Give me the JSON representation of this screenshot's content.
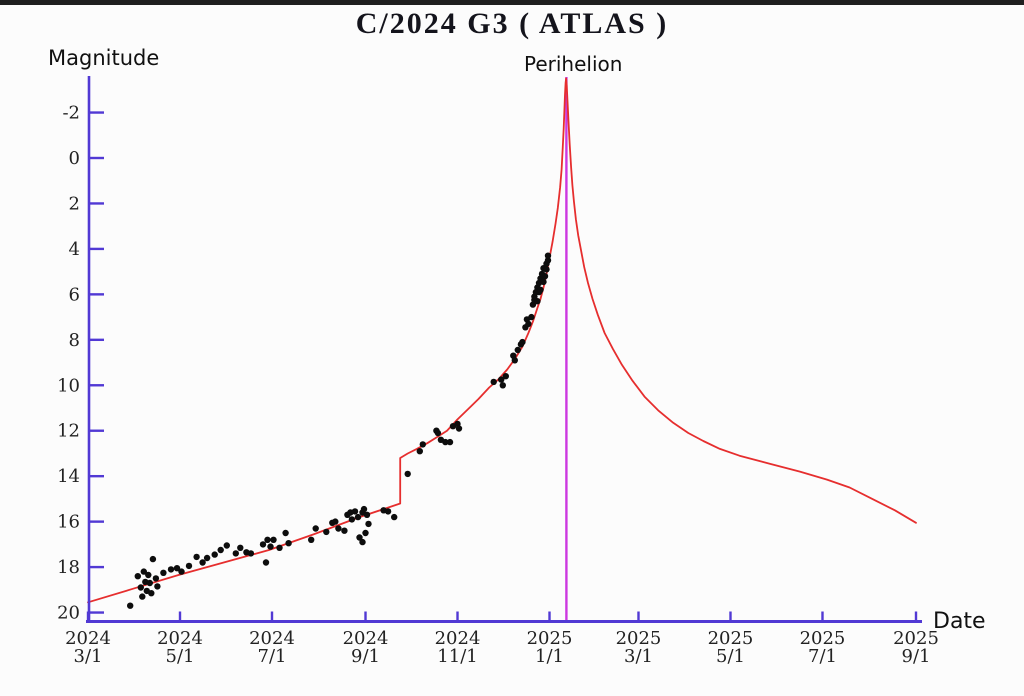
{
  "page": {
    "background": "#fcfcfc",
    "top_bar_color": "#1f1f1f"
  },
  "chart_data": {
    "type": "scatter",
    "title": "C/2024 G3 ( ATLAS )",
    "xlabel": "Date",
    "ylabel": "Magnitude",
    "legend": "none",
    "grid": false,
    "axis_color": "#5139d4",
    "tick_label_color": "#222222",
    "y_axis": {
      "inverted": true,
      "range": [
        -3.7,
        20.4
      ],
      "ticks": [
        -2,
        0,
        2,
        4,
        6,
        8,
        10,
        12,
        14,
        16,
        18,
        20
      ]
    },
    "x_axis": {
      "range_days": [
        0,
        549
      ],
      "tick_days": [
        0,
        61,
        122,
        184,
        245,
        306,
        365,
        426,
        487,
        549
      ],
      "tick_labels": [
        [
          "2024",
          "3/1"
        ],
        [
          "2024",
          "5/1"
        ],
        [
          "2024",
          "7/1"
        ],
        [
          "2024",
          "9/1"
        ],
        [
          "2024",
          "11/1"
        ],
        [
          "2025",
          "1/1"
        ],
        [
          "2025",
          "3/1"
        ],
        [
          "2025",
          "5/1"
        ],
        [
          "2025",
          "7/1"
        ],
        [
          "2025",
          "9/1"
        ]
      ]
    },
    "annotations": {
      "perihelion": {
        "label": "Perihelion",
        "day": 317.2,
        "line_color": "#cc38e0"
      }
    },
    "series": [
      {
        "name": "model-light-curve",
        "type": "line",
        "color": "#e62e2e",
        "points": [
          [
            0,
            19.55
          ],
          [
            30,
            18.95
          ],
          [
            60,
            18.35
          ],
          [
            90,
            17.8
          ],
          [
            120,
            17.25
          ],
          [
            150,
            16.55
          ],
          [
            180,
            15.8
          ],
          [
            196,
            15.45
          ],
          [
            207,
            15.2
          ],
          [
            207,
            13.2
          ],
          [
            212,
            13.0
          ],
          [
            218,
            12.8
          ],
          [
            225,
            12.55
          ],
          [
            231,
            12.3
          ],
          [
            238,
            12.0
          ],
          [
            245,
            11.5
          ],
          [
            252,
            11.05
          ],
          [
            259,
            10.6
          ],
          [
            266,
            10.1
          ],
          [
            272,
            9.75
          ],
          [
            278,
            9.3
          ],
          [
            283,
            8.85
          ],
          [
            288,
            8.3
          ],
          [
            292,
            7.7
          ],
          [
            295,
            7.2
          ],
          [
            298,
            6.6
          ],
          [
            300,
            6.2
          ],
          [
            302,
            5.7
          ],
          [
            304,
            5.1
          ],
          [
            306,
            4.4
          ],
          [
            308,
            3.7
          ],
          [
            310,
            2.9
          ],
          [
            311.5,
            2.2
          ],
          [
            313,
            1.3
          ],
          [
            314,
            0.5
          ],
          [
            314.8,
            -0.5
          ],
          [
            315.4,
            -1.3
          ],
          [
            315.9,
            -2.1
          ],
          [
            316.3,
            -2.8
          ],
          [
            316.7,
            -3.3
          ],
          [
            317,
            -3.5
          ],
          [
            317.4,
            -3.2
          ],
          [
            317.9,
            -2.5
          ],
          [
            318.6,
            -1.6
          ],
          [
            319.4,
            -0.6
          ],
          [
            320.3,
            0.4
          ],
          [
            321.2,
            1.2
          ],
          [
            322.2,
            1.9
          ],
          [
            323.5,
            2.7
          ],
          [
            325,
            3.4
          ],
          [
            327,
            4.1
          ],
          [
            329,
            4.8
          ],
          [
            331.5,
            5.5
          ],
          [
            334.5,
            6.2
          ],
          [
            338,
            6.9
          ],
          [
            342.5,
            7.7
          ],
          [
            348,
            8.4
          ],
          [
            354,
            9.1
          ],
          [
            361,
            9.8
          ],
          [
            369,
            10.5
          ],
          [
            378,
            11.1
          ],
          [
            388,
            11.65
          ],
          [
            398,
            12.1
          ],
          [
            408,
            12.45
          ],
          [
            419,
            12.8
          ],
          [
            432,
            13.1
          ],
          [
            452,
            13.45
          ],
          [
            472,
            13.8
          ],
          [
            490,
            14.15
          ],
          [
            505,
            14.5
          ],
          [
            520,
            15.0
          ],
          [
            535,
            15.5
          ],
          [
            549,
            16.05
          ]
        ]
      },
      {
        "name": "observations",
        "type": "scatter",
        "color": "#0d0d0d",
        "points": [
          [
            28,
            19.7
          ],
          [
            33,
            18.4
          ],
          [
            35,
            18.9
          ],
          [
            36,
            19.3
          ],
          [
            37,
            18.2
          ],
          [
            38,
            18.65
          ],
          [
            39,
            19.05
          ],
          [
            40,
            18.35
          ],
          [
            41,
            18.7
          ],
          [
            42,
            19.15
          ],
          [
            43,
            17.65
          ],
          [
            45,
            18.5
          ],
          [
            46,
            18.85
          ],
          [
            50,
            18.25
          ],
          [
            55,
            18.1
          ],
          [
            59,
            18.05
          ],
          [
            62,
            18.2
          ],
          [
            67,
            17.95
          ],
          [
            72,
            17.55
          ],
          [
            76,
            17.8
          ],
          [
            79,
            17.6
          ],
          [
            84,
            17.45
          ],
          [
            88,
            17.25
          ],
          [
            92,
            17.05
          ],
          [
            98,
            17.4
          ],
          [
            101,
            17.15
          ],
          [
            105,
            17.35
          ],
          [
            108,
            17.4
          ],
          [
            116,
            17.0
          ],
          [
            118,
            17.8
          ],
          [
            119,
            16.8
          ],
          [
            121,
            17.1
          ],
          [
            123,
            16.8
          ],
          [
            127,
            17.15
          ],
          [
            131,
            16.5
          ],
          [
            133,
            16.95
          ],
          [
            148,
            16.8
          ],
          [
            151,
            16.3
          ],
          [
            158,
            16.45
          ],
          [
            162,
            16.05
          ],
          [
            164,
            16.0
          ],
          [
            166,
            16.3
          ],
          [
            170,
            16.4
          ],
          [
            172,
            15.7
          ],
          [
            174,
            15.6
          ],
          [
            175,
            15.9
          ],
          [
            177,
            15.55
          ],
          [
            179,
            15.8
          ],
          [
            180,
            16.7
          ],
          [
            182,
            15.6
          ],
          [
            182,
            16.9
          ],
          [
            183,
            15.45
          ],
          [
            184,
            16.5
          ],
          [
            185,
            15.7
          ],
          [
            186,
            16.1
          ],
          [
            196,
            15.5
          ],
          [
            199,
            15.55
          ],
          [
            203,
            15.8
          ],
          [
            212,
            13.9
          ],
          [
            220,
            12.9
          ],
          [
            222,
            12.6
          ],
          [
            231,
            12.0
          ],
          [
            232,
            12.1
          ],
          [
            234,
            12.4
          ],
          [
            237,
            12.5
          ],
          [
            240,
            12.5
          ],
          [
            242,
            11.8
          ],
          [
            245,
            11.7
          ],
          [
            246,
            11.9
          ],
          [
            269,
            9.85
          ],
          [
            274,
            9.75
          ],
          [
            275,
            10.0
          ],
          [
            277,
            9.6
          ],
          [
            282,
            8.7
          ],
          [
            283,
            8.9
          ],
          [
            285,
            8.45
          ],
          [
            287,
            8.2
          ],
          [
            288,
            8.1
          ],
          [
            290,
            7.45
          ],
          [
            291,
            7.1
          ],
          [
            292,
            7.3
          ],
          [
            294,
            7.0
          ],
          [
            295,
            6.45
          ],
          [
            296,
            6.25
          ],
          [
            296,
            6.1
          ],
          [
            297,
            5.9
          ],
          [
            298,
            6.3
          ],
          [
            298,
            5.7
          ],
          [
            299,
            5.9
          ],
          [
            299,
            5.5
          ],
          [
            300,
            5.3
          ],
          [
            300,
            5.8
          ],
          [
            301,
            5.1
          ],
          [
            302,
            5.45
          ],
          [
            302,
            4.85
          ],
          [
            303,
            5.2
          ],
          [
            304,
            4.9
          ],
          [
            304,
            4.65
          ],
          [
            305,
            4.5
          ],
          [
            305,
            4.3
          ]
        ]
      }
    ]
  }
}
